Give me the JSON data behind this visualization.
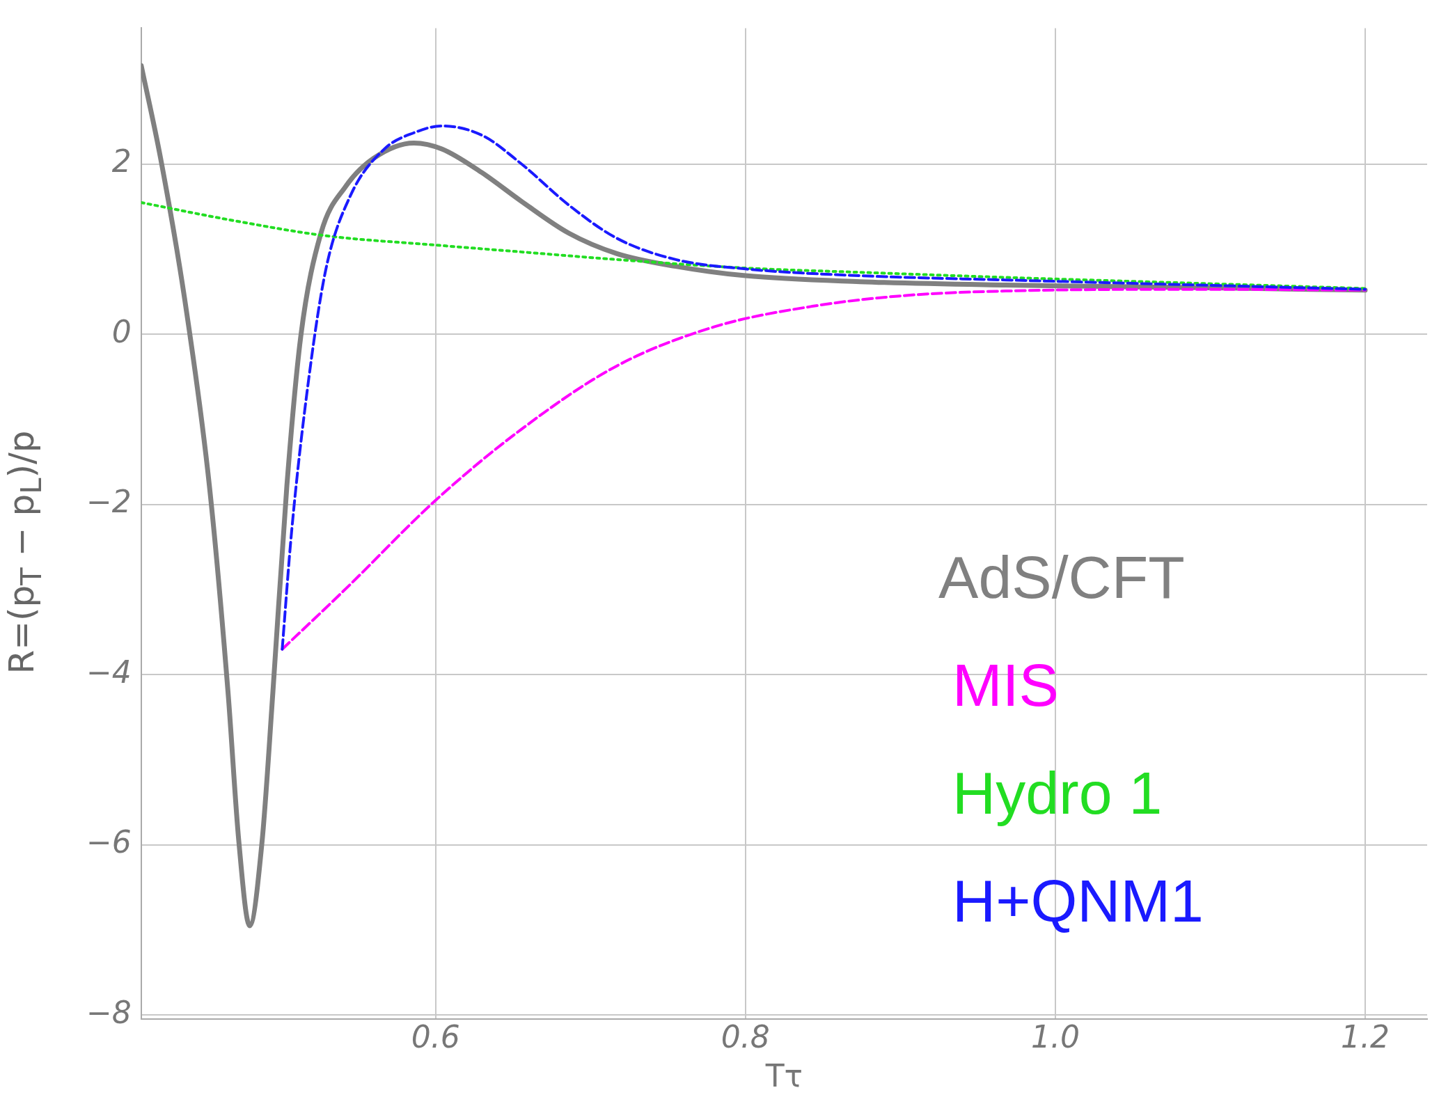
{
  "chart_data": {
    "type": "line",
    "xlabel": "Tτ",
    "ylabel": "R=(p$_{T}$ − p$_{L}$)/p",
    "xlim": [
      0.41,
      1.24
    ],
    "ylim": [
      -8.05,
      3.6
    ],
    "xticks": [
      0.6,
      0.8,
      {
        "value": 1.0,
        "label": "1.0"
      },
      1.2
    ],
    "yticks": [
      {
        "value": -8,
        "label": "−8"
      },
      {
        "value": -6,
        "label": "−6"
      },
      {
        "value": -4,
        "label": "−4"
      },
      {
        "value": -2,
        "label": "−2"
      },
      0,
      2
    ],
    "grid": true,
    "legend": "bottom right",
    "marker": "none",
    "series": [
      {
        "name": "AdS/CFT",
        "color": "#808080",
        "line_style": "solid",
        "x": [
          0.41,
          0.4225,
          0.438,
          0.454,
          0.466,
          0.473,
          0.48,
          0.488,
          0.495,
          0.504,
          0.513,
          0.526,
          0.542,
          0.56,
          0.586,
          0.604,
          0.63,
          0.655,
          0.686,
          0.717,
          0.755,
          0.8,
          0.874,
          0.968,
          1.093,
          1.2
        ],
        "values": [
          3.16,
          2.07,
          0.42,
          -1.78,
          -4.2,
          -5.96,
          -6.95,
          -5.96,
          -4.2,
          -1.78,
          -0.02,
          1.19,
          1.74,
          2.07,
          2.25,
          2.18,
          1.9,
          1.57,
          1.19,
          0.95,
          0.8,
          0.69,
          0.62,
          0.58,
          0.55,
          0.52
        ]
      },
      {
        "name": "MIS",
        "color": "#ff00ff",
        "line_style": "dashed",
        "x": [
          0.501,
          0.542,
          0.6,
          0.655,
          0.717,
          0.78,
          0.843,
          0.905,
          0.968,
          1.093,
          1.2
        ],
        "values": [
          -3.7,
          -2.99,
          -1.95,
          -1.12,
          -0.37,
          0.09,
          0.33,
          0.46,
          0.51,
          0.53,
          0.52
        ]
      },
      {
        "name": "Hydro 1",
        "color": "#22dd22",
        "line_style": "dotted",
        "x": [
          0.41,
          0.466,
          0.529,
          0.6,
          0.655,
          0.717,
          0.8,
          0.874,
          0.968,
          1.093,
          1.2
        ],
        "values": [
          1.55,
          1.35,
          1.16,
          1.05,
          0.97,
          0.88,
          0.78,
          0.73,
          0.67,
          0.6,
          0.54
        ]
      },
      {
        "name": "H+QNM1",
        "color": "#1a1aff",
        "line_style": "dashed",
        "x": [
          0.501,
          0.507,
          0.517,
          0.529,
          0.545,
          0.567,
          0.586,
          0.604,
          0.63,
          0.655,
          0.686,
          0.717,
          0.755,
          0.8,
          0.874,
          0.968,
          1.093,
          1.2
        ],
        "values": [
          -3.7,
          -2.33,
          -0.68,
          0.75,
          1.63,
          2.18,
          2.37,
          2.45,
          2.34,
          2.01,
          1.52,
          1.13,
          0.88,
          0.77,
          0.69,
          0.64,
          0.58,
          0.53
        ]
      }
    ]
  }
}
